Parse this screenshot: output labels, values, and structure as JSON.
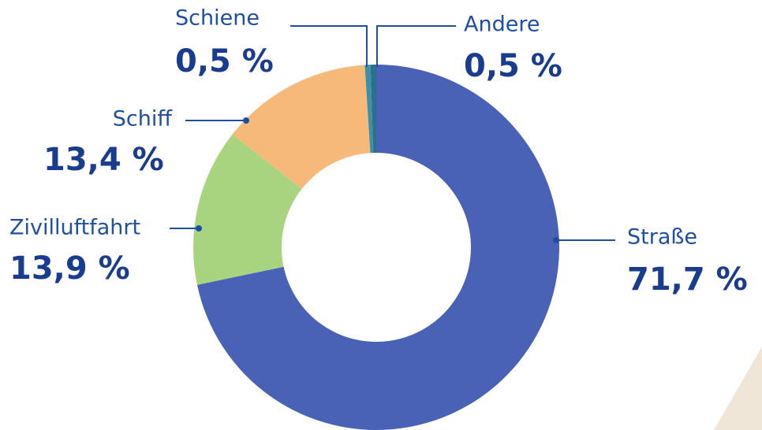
{
  "chart_data": {
    "type": "donut",
    "categories": [
      "Straße",
      "Zivilluftfahrt",
      "Schiff",
      "Schiene",
      "Andere"
    ],
    "values": [
      71.7,
      13.9,
      13.4,
      0.5,
      0.5
    ],
    "value_labels": [
      "71,7 %",
      "13,9 %",
      "13,4 %",
      "0,5 %",
      "0,5 %"
    ],
    "colors": [
      "#4a62b5",
      "#a9d47f",
      "#f7b97a",
      "#3f8fa6",
      "#2a6f8c"
    ]
  }
}
